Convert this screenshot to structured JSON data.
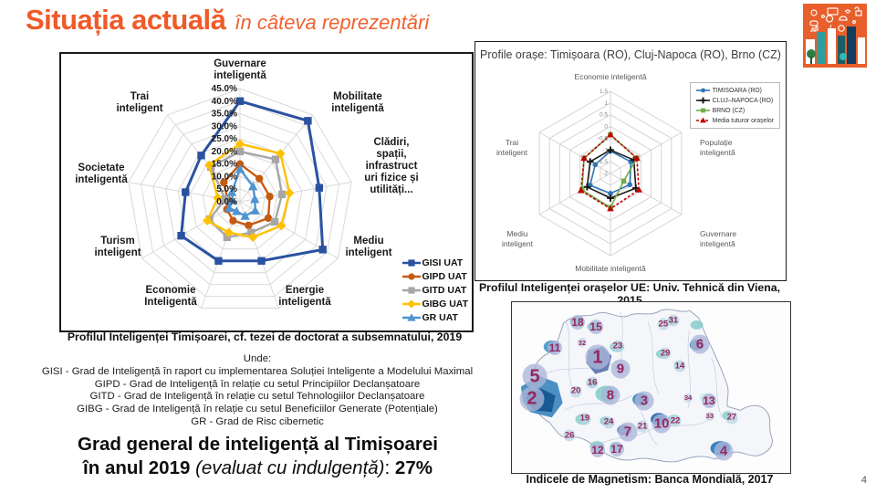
{
  "slide": {
    "title": "Situația actuală",
    "subtitle": "în câteva reprezentări",
    "page_number": "4"
  },
  "left_chart": {
    "caption": "Profilul Inteligenței Timișoarei, cf. tezei de doctorat a subsemnatului, 2019"
  },
  "right_chart": {
    "title": "Profile orașe: Timișoara (RO), Cluj-Napoca (RO), Brno (CZ)",
    "caption": "Profilul Inteligenței orașelor UE: Univ. Tehnică din Viena, 2015"
  },
  "map": {
    "caption": "Indicele de Magnetism: Banca Mondială, 2017"
  },
  "unde": {
    "lines": [
      "Unde:",
      "GISI - Grad de Inteligență în raport cu implementarea Soluției Inteligente a Modelului Maximal",
      "GIPD - Grad de Inteligență în relație cu setul Principiilor Declanșatoare",
      "GITD - Grad de Inteligență în relație cu setul Tehnologiilor Declanșatoare",
      "GIBG - Grad de Inteligență în relație cu setul Beneficiilor Generate (Potențiale)",
      "GR - Grad de Risc cibernetic"
    ]
  },
  "statement": {
    "line1": "Grad general de inteligență al Timișoarei",
    "line2_bold": "în anul 2019 ",
    "line2_italic": "(evaluat cu indulgență)",
    "line2_sep": ": ",
    "line2_value": "27%"
  },
  "chart_data": [
    {
      "type": "radar",
      "title": "Profilul Inteligenței Timișoarei, cf. tezei de doctorat a subsemnatului, 2019",
      "categories": [
        "Guvernare inteligentă",
        "Mobilitate inteligentă",
        "Clădiri, spații, infrastructuri fizice și utilități...",
        "Mediu inteligent",
        "Energie inteligentă",
        "Economie Inteligentă",
        "Turism inteligent",
        "Societate inteligentă",
        "Trai inteligent"
      ],
      "axis_labels": [
        [
          "Guvernare",
          "inteligentă"
        ],
        [
          "Mobilitate",
          "inteligentă"
        ],
        [
          "Clădiri,",
          "spații,",
          "infrastruct",
          "uri fizice și",
          "utilități..."
        ],
        [
          "Mediu",
          "inteligent"
        ],
        [
          "Energie",
          "inteligentă"
        ],
        [
          "Economie",
          "Inteligentă"
        ],
        [
          "Turism",
          "inteligent"
        ],
        [
          "Societate",
          "inteligentă"
        ],
        [
          "Trai",
          "inteligent"
        ]
      ],
      "rmin": 0,
      "rmax": 45,
      "tick_values": [
        45,
        40,
        35,
        30,
        25,
        20,
        15,
        10,
        5,
        0
      ],
      "tick_labels": [
        "45.0%",
        "40.0%",
        "35.0%",
        "30.0%",
        "25.0%",
        "20.0%",
        "15.0%",
        "10.0%",
        "5.0%",
        "0.0%"
      ],
      "grid": true,
      "legend_position": "right-bottom",
      "series": [
        {
          "name": "GISI UAT",
          "color": "#2A52A0",
          "marker": "square",
          "width": 3,
          "values": [
            40,
            42,
            32,
            38,
            25,
            25,
            27,
            22,
            24
          ]
        },
        {
          "name": "GIPD UAT",
          "color": "#C55A11",
          "marker": "circle",
          "values": [
            15,
            12,
            12,
            13,
            10,
            8,
            6,
            5,
            10
          ]
        },
        {
          "name": "GITD UAT",
          "color": "#A6A6A6",
          "marker": "square",
          "values": [
            20,
            22,
            17,
            16,
            13,
            15,
            14,
            6,
            18
          ]
        },
        {
          "name": "GIBG UAT",
          "color": "#FFC000",
          "marker": "diamond",
          "values": [
            23,
            25,
            20,
            19,
            15,
            13,
            15,
            9,
            19
          ]
        },
        {
          "name": "GR UAT",
          "color": "#4F93D1",
          "marker": "triangle",
          "values": [
            13,
            8,
            6,
            7,
            6,
            4,
            5,
            3,
            5
          ]
        }
      ]
    },
    {
      "type": "radar",
      "title": "Profile orașe: Timișoara (RO), Cluj-Napoca (RO), Brno (CZ)",
      "categories": [
        "Economie inteligentă",
        "Populație inteligentă",
        "Guvernare inteligentă",
        "Mobilitate inteligentă",
        "Mediu inteligent",
        "Trai inteligent"
      ],
      "axis_labels": [
        [
          "Economie inteligentă"
        ],
        [
          "Populație",
          "inteligentă"
        ],
        [
          "Guvernare",
          "inteligentă"
        ],
        [
          "Mobilitate inteligentă"
        ],
        [
          "Mediu",
          "inteligent"
        ],
        [
          "Trai",
          "inteligent"
        ]
      ],
      "rmin": -2,
      "rmax": 1.5,
      "tick_values": [
        1.5,
        1,
        0.5,
        0,
        -0.5,
        -1,
        -1.5,
        -2
      ],
      "tick_labels": [
        "1.5",
        "1",
        "0.5",
        "0",
        "-0.5",
        "-1",
        "-1.5",
        "-2"
      ],
      "grid": true,
      "legend_position": "top-right",
      "series": [
        {
          "name": "TIMISOARA (RO)",
          "color": "#2E75B6",
          "marker": "circle",
          "values": [
            -1.05,
            -1.0,
            -1.05,
            -1.15,
            -1.0,
            -1.25
          ]
        },
        {
          "name": "CLUJ–NAPOCA (RO)",
          "color": "#1a1a1a",
          "marker": "plus",
          "values": [
            -1.0,
            -0.85,
            -0.75,
            -0.95,
            -0.85,
            -1.0
          ]
        },
        {
          "name": "BRNO (CZ)",
          "color": "#70AD47",
          "marker": "square",
          "values": [
            -0.35,
            -0.7,
            -1.35,
            -0.55,
            -0.6,
            -0.7
          ]
        },
        {
          "name": "Media tuturor orașelor",
          "color": "#C00000",
          "marker": "triangle",
          "dash": "3,2",
          "values": [
            -0.35,
            -0.7,
            -0.6,
            -0.5,
            -0.55,
            -0.7
          ]
        }
      ]
    },
    {
      "type": "map",
      "title": "Indicele de Magnetism: Banca Mondială, 2017",
      "region": "Romania",
      "badges": [
        {
          "n": "1",
          "x": 30.8,
          "y": 32.3,
          "s": "xl"
        },
        {
          "n": "2",
          "x": 7.2,
          "y": 56.5,
          "s": "xl"
        },
        {
          "n": "5",
          "x": 8.2,
          "y": 43.5,
          "s": "xl"
        },
        {
          "n": "3",
          "x": 47.5,
          "y": 57.5,
          "s": "l"
        },
        {
          "n": "4",
          "x": 76.1,
          "y": 87.1,
          "s": "l"
        },
        {
          "n": "6",
          "x": 67.5,
          "y": 24.7,
          "s": "l"
        },
        {
          "n": "7",
          "x": 41.6,
          "y": 75.8,
          "s": "l"
        },
        {
          "n": "8",
          "x": 35.4,
          "y": 54.8,
          "s": "l"
        },
        {
          "n": "9",
          "x": 39.0,
          "y": 39.2,
          "s": "l"
        },
        {
          "n": "10",
          "x": 53.8,
          "y": 71.0,
          "s": "l"
        },
        {
          "n": "11",
          "x": 15.4,
          "y": 26.9,
          "s": "m"
        },
        {
          "n": "12",
          "x": 30.8,
          "y": 86.6,
          "s": "m"
        },
        {
          "n": "13",
          "x": 70.8,
          "y": 57.5,
          "s": "m"
        },
        {
          "n": "14",
          "x": 60.3,
          "y": 37.6,
          "s": "sm"
        },
        {
          "n": "15",
          "x": 30.2,
          "y": 14.5,
          "s": "m"
        },
        {
          "n": "16",
          "x": 28.9,
          "y": 47.3,
          "s": "sm"
        },
        {
          "n": "17",
          "x": 37.7,
          "y": 86.0,
          "s": "m"
        },
        {
          "n": "18",
          "x": 23.6,
          "y": 11.8,
          "s": "m"
        },
        {
          "n": "19",
          "x": 26.2,
          "y": 68.3,
          "s": "sm"
        },
        {
          "n": "20",
          "x": 23.0,
          "y": 52.2,
          "s": "sm"
        },
        {
          "n": "21",
          "x": 46.9,
          "y": 72.6,
          "s": "sm"
        },
        {
          "n": "22",
          "x": 58.7,
          "y": 69.4,
          "s": "sm"
        },
        {
          "n": "23",
          "x": 38.0,
          "y": 25.8,
          "s": "sm"
        },
        {
          "n": "24",
          "x": 34.8,
          "y": 70.4,
          "s": "sm"
        },
        {
          "n": "25",
          "x": 54.4,
          "y": 12.9,
          "s": "sm"
        },
        {
          "n": "26",
          "x": 20.7,
          "y": 78.0,
          "s": "sm"
        },
        {
          "n": "27",
          "x": 79.0,
          "y": 67.7,
          "s": "sm"
        },
        {
          "n": "29",
          "x": 55.1,
          "y": 30.1,
          "s": "sm"
        },
        {
          "n": "31",
          "x": 58.0,
          "y": 10.8,
          "s": "sm"
        },
        {
          "n": "32",
          "x": 25.2,
          "y": 23.7,
          "s": "xs"
        },
        {
          "n": "33",
          "x": 71.1,
          "y": 66.7,
          "s": "xs"
        },
        {
          "n": "34",
          "x": 63.3,
          "y": 55.9,
          "s": "xs"
        }
      ]
    }
  ]
}
